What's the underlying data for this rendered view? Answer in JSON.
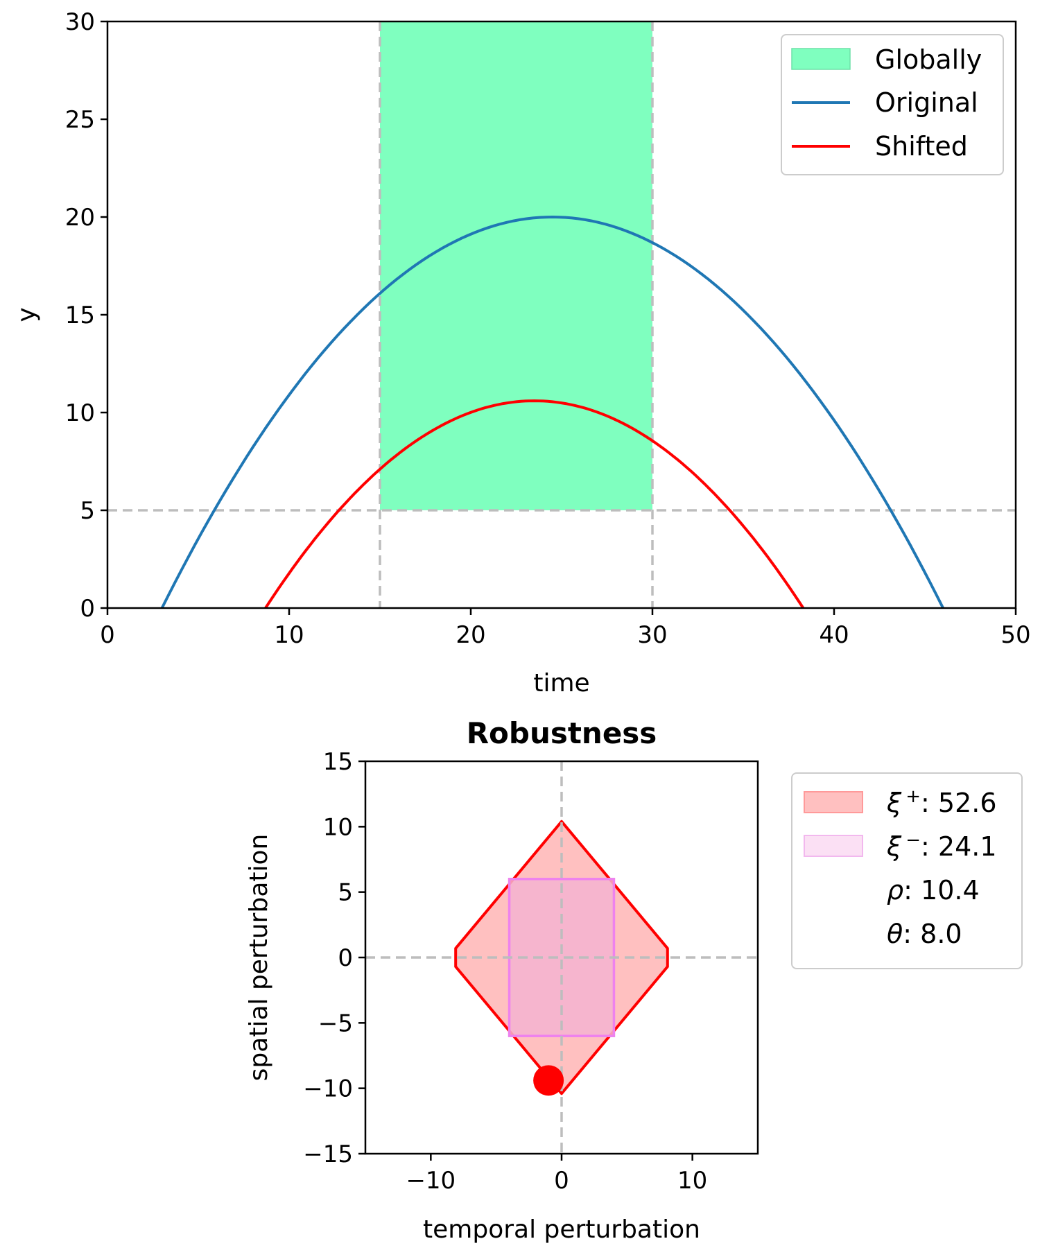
{
  "chart_data": [
    {
      "type": "line",
      "title": "",
      "xlabel": "time",
      "ylabel": "y",
      "xlim": [
        0,
        50
      ],
      "ylim": [
        0,
        30
      ],
      "xticks": [
        "0",
        "10",
        "20",
        "30",
        "40",
        "50"
      ],
      "yticks": [
        "0",
        "5",
        "10",
        "15",
        "20",
        "25",
        "30"
      ],
      "region": {
        "name": "Globally",
        "x": [
          15,
          30
        ],
        "y": [
          5,
          30
        ],
        "color": "#7fffbf"
      },
      "threshold_y": 5,
      "reference_lines_x": [
        15,
        30
      ],
      "series": [
        {
          "name": "Original",
          "color": "#1f77b4",
          "shape": "parabola",
          "roots": [
            3,
            46
          ],
          "peak": [
            24.5,
            20
          ]
        },
        {
          "name": "Shifted",
          "color": "#ff0000",
          "shape": "parabola",
          "roots": [
            8.7,
            38.3
          ],
          "peak": [
            23.5,
            10.6
          ]
        }
      ],
      "legend": [
        "Globally",
        "Original",
        "Shifted"
      ],
      "legend_position": "upper right",
      "grid": false
    },
    {
      "type": "area",
      "title": "Robustness",
      "xlabel": "temporal perturbation",
      "ylabel": "spatial perturbation",
      "xlim": [
        -15,
        15
      ],
      "ylim": [
        -15,
        15
      ],
      "xticks": [
        "−10",
        "0",
        "10"
      ],
      "yticks": [
        "−15",
        "−10",
        "−5",
        "0",
        "5",
        "10",
        "15"
      ],
      "xi_plus_region": {
        "color": "#ff0000",
        "fill": "#ffc0c0",
        "polygon": [
          [
            0,
            10.4
          ],
          [
            -8.1,
            0.7
          ],
          [
            -8.1,
            -0.7
          ],
          [
            0,
            -10.4
          ],
          [
            8.1,
            -0.7
          ],
          [
            8.1,
            0.7
          ]
        ]
      },
      "xi_minus_region": {
        "color": "#ee82ee",
        "fill": "#f5b3d0",
        "rect": {
          "x": [
            -4,
            4
          ],
          "y": [
            -6,
            6
          ]
        }
      },
      "point": {
        "x": -1,
        "y": -9.4,
        "color": "#ff0000"
      },
      "reference_lines": {
        "x": 0,
        "y": 0
      },
      "legend": [
        {
          "symbol": "ξ",
          "sup": "+",
          "value": "52.6"
        },
        {
          "symbol": "ξ",
          "sup": "−",
          "value": "24.1"
        },
        {
          "symbol": "ρ",
          "value": "10.4"
        },
        {
          "symbol": "θ",
          "value": "8.0"
        }
      ],
      "legend_position": "outside right",
      "grid": false
    }
  ]
}
